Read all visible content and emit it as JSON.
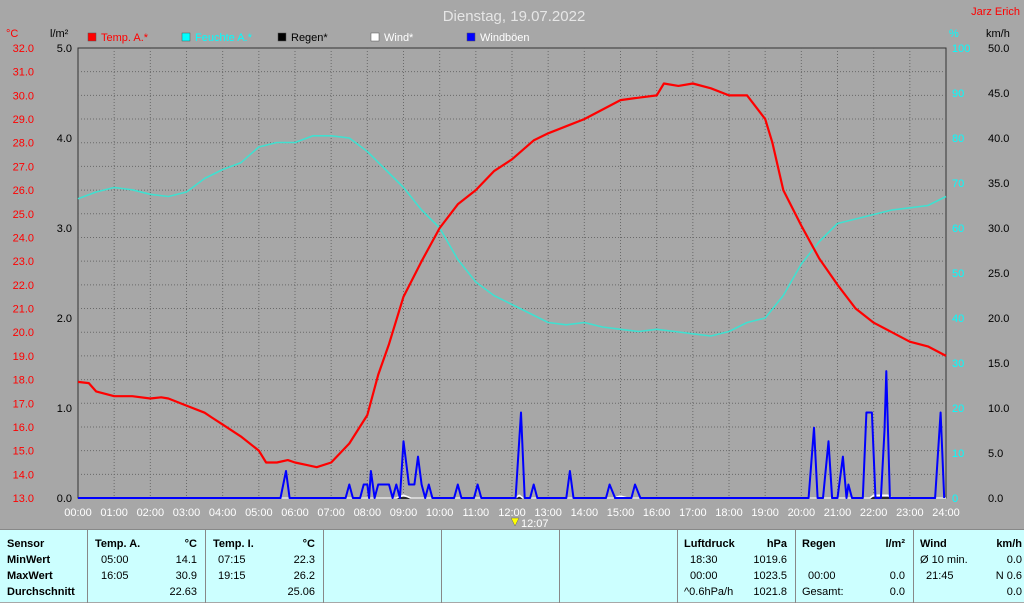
{
  "title": "Dienstag, 19.07.2022",
  "author": "Jarz Erich",
  "cursor_time": "12:07",
  "legend": [
    {
      "label": "Temp. A.*",
      "color": "#ff0000",
      "text_color": "#ff0000"
    },
    {
      "label": "Feuchte A.*",
      "color": "#00ffff",
      "text_color": "#00ffff"
    },
    {
      "label": "Regen*",
      "color": "#000000",
      "text_color": "#000000"
    },
    {
      "label": "Wind*",
      "color": "#ffffff",
      "text_color": "#ffffff"
    },
    {
      "label": "Windböen",
      "color": "#0000ff",
      "text_color": "#ffffff"
    }
  ],
  "axes": {
    "left_temp": {
      "unit": "°C",
      "min": 13.0,
      "max": 32.0,
      "ticks": [
        "32.0",
        "31.0",
        "30.0",
        "29.0",
        "28.0",
        "27.0",
        "26.0",
        "25.0",
        "24.0",
        "23.0",
        "22.0",
        "21.0",
        "20.0",
        "19.0",
        "18.0",
        "17.0",
        "16.0",
        "15.0",
        "14.0",
        "13.0"
      ]
    },
    "left_rain": {
      "unit": "l/m²",
      "min": 0,
      "max": 5.0,
      "ticks": [
        "5.0",
        "4.0",
        "3.0",
        "2.0",
        "1.0",
        "0.0"
      ]
    },
    "right_humidity": {
      "unit": "%",
      "min": 0,
      "max": 100,
      "ticks": [
        "100",
        "90",
        "80",
        "70",
        "60",
        "50",
        "40",
        "30",
        "20",
        "10",
        "0"
      ]
    },
    "right_wind": {
      "unit": "km/h",
      "min": 0,
      "max": 50,
      "ticks": [
        "50.0",
        "45.0",
        "40.0",
        "35.0",
        "30.0",
        "25.0",
        "20.0",
        "15.0",
        "10.0",
        "5.0",
        "0.0"
      ]
    },
    "x_ticks": [
      "00:00",
      "01:00",
      "02:00",
      "03:00",
      "04:00",
      "05:00",
      "06:00",
      "07:00",
      "08:00",
      "09:00",
      "10:00",
      "11:00",
      "12:00",
      "13:00",
      "14:00",
      "15:00",
      "16:00",
      "17:00",
      "18:00",
      "19:00",
      "20:00",
      "21:00",
      "22:00",
      "23:00",
      "24:00"
    ]
  },
  "chart_data": {
    "type": "line",
    "xlabel": "",
    "xlim": [
      0,
      24
    ],
    "series": [
      {
        "name": "Temp. A.*",
        "axis": "°C",
        "color": "#ff0000",
        "points": [
          [
            0,
            17.9
          ],
          [
            0.3,
            17.85
          ],
          [
            0.5,
            17.5
          ],
          [
            1,
            17.3
          ],
          [
            1.5,
            17.3
          ],
          [
            2,
            17.2
          ],
          [
            2.3,
            17.25
          ],
          [
            2.5,
            17.2
          ],
          [
            3,
            16.9
          ],
          [
            3.5,
            16.6
          ],
          [
            3.7,
            16.4
          ],
          [
            4,
            16.1
          ],
          [
            4.5,
            15.6
          ],
          [
            5,
            15.0
          ],
          [
            5.2,
            14.5
          ],
          [
            5.5,
            14.5
          ],
          [
            5.8,
            14.6
          ],
          [
            6,
            14.5
          ],
          [
            6.3,
            14.4
          ],
          [
            6.6,
            14.3
          ],
          [
            7,
            14.5
          ],
          [
            7.5,
            15.3
          ],
          [
            8,
            16.5
          ],
          [
            8.3,
            18.2
          ],
          [
            8.6,
            19.5
          ],
          [
            9,
            21.5
          ],
          [
            9.5,
            23.0
          ],
          [
            10,
            24.4
          ],
          [
            10.5,
            25.4
          ],
          [
            11,
            26.0
          ],
          [
            11.5,
            26.8
          ],
          [
            12,
            27.3
          ],
          [
            12.3,
            27.7
          ],
          [
            12.6,
            28.1
          ],
          [
            13,
            28.4
          ],
          [
            13.5,
            28.7
          ],
          [
            14,
            29.0
          ],
          [
            14.5,
            29.4
          ],
          [
            15,
            29.8
          ],
          [
            15.5,
            29.9
          ],
          [
            16,
            30.0
          ],
          [
            16.2,
            30.5
          ],
          [
            16.6,
            30.4
          ],
          [
            17,
            30.5
          ],
          [
            17.5,
            30.3
          ],
          [
            18,
            30.0
          ],
          [
            18.5,
            30.0
          ],
          [
            19,
            29.0
          ],
          [
            19.2,
            28.0
          ],
          [
            19.5,
            26.0
          ],
          [
            20,
            24.5
          ],
          [
            20.5,
            23.1
          ],
          [
            21,
            22.0
          ],
          [
            21.5,
            21.0
          ],
          [
            22,
            20.4
          ],
          [
            22.5,
            20.0
          ],
          [
            23,
            19.6
          ],
          [
            23.5,
            19.4
          ],
          [
            24,
            19.0
          ]
        ]
      },
      {
        "name": "Feuchte A.*",
        "axis": "%",
        "color": "#40e0d0",
        "points": [
          [
            0,
            66.5
          ],
          [
            0.5,
            68
          ],
          [
            1,
            69
          ],
          [
            1.5,
            68.5
          ],
          [
            2,
            67.5
          ],
          [
            2.5,
            67
          ],
          [
            3,
            68
          ],
          [
            3.5,
            71
          ],
          [
            4,
            73
          ],
          [
            4.5,
            74.5
          ],
          [
            5,
            78
          ],
          [
            5.5,
            79
          ],
          [
            6,
            79
          ],
          [
            6.5,
            80.5
          ],
          [
            7,
            80.5
          ],
          [
            7.5,
            80
          ],
          [
            8,
            77
          ],
          [
            8.5,
            73
          ],
          [
            9,
            69
          ],
          [
            9.5,
            64
          ],
          [
            10,
            60
          ],
          [
            10.5,
            53
          ],
          [
            11,
            48
          ],
          [
            11.5,
            45
          ],
          [
            12,
            43
          ],
          [
            12.5,
            41
          ],
          [
            13,
            39
          ],
          [
            13.5,
            38.5
          ],
          [
            14,
            39
          ],
          [
            14.5,
            38
          ],
          [
            15,
            37.5
          ],
          [
            15.5,
            37
          ],
          [
            16,
            37.5
          ],
          [
            16.5,
            37
          ],
          [
            17,
            36.5
          ],
          [
            17.5,
            36
          ],
          [
            18,
            37
          ],
          [
            18.5,
            39
          ],
          [
            19,
            40
          ],
          [
            19.5,
            45
          ],
          [
            20,
            52
          ],
          [
            20.5,
            57
          ],
          [
            21,
            61
          ],
          [
            21.5,
            62
          ],
          [
            22,
            63
          ],
          [
            22.5,
            64
          ],
          [
            23,
            64.5
          ],
          [
            23.5,
            65
          ],
          [
            24,
            67
          ]
        ]
      },
      {
        "name": "Regen*",
        "axis": "l/m²",
        "color": "#000000",
        "points": [
          [
            0,
            0
          ],
          [
            24,
            0
          ]
        ]
      },
      {
        "name": "Wind*",
        "axis": "km/h",
        "color": "#ffffff",
        "points": [
          [
            0,
            0
          ],
          [
            8.8,
            0
          ],
          [
            9,
            0.3
          ],
          [
            9.2,
            0
          ],
          [
            12.1,
            0
          ],
          [
            12.2,
            0.3
          ],
          [
            12.3,
            0
          ],
          [
            14.8,
            0
          ],
          [
            15,
            0.2
          ],
          [
            15.2,
            0
          ],
          [
            21.9,
            0
          ],
          [
            22,
            0.3
          ],
          [
            22.4,
            0.3
          ],
          [
            22.5,
            0
          ],
          [
            24,
            0
          ]
        ]
      },
      {
        "name": "Windböen",
        "axis": "km/h",
        "color": "#0000ff",
        "points": [
          [
            0,
            0
          ],
          [
            5.6,
            0
          ],
          [
            5.75,
            3
          ],
          [
            5.85,
            0
          ],
          [
            7.4,
            0
          ],
          [
            7.5,
            1.5
          ],
          [
            7.6,
            0
          ],
          [
            7.8,
            0
          ],
          [
            7.9,
            1.5
          ],
          [
            8.0,
            1.5
          ],
          [
            8.05,
            0
          ],
          [
            8.1,
            3
          ],
          [
            8.2,
            0
          ],
          [
            8.3,
            1.5
          ],
          [
            8.6,
            1.5
          ],
          [
            8.7,
            0
          ],
          [
            8.8,
            1.5
          ],
          [
            8.9,
            0
          ],
          [
            9.0,
            6.3
          ],
          [
            9.15,
            1.5
          ],
          [
            9.3,
            1.5
          ],
          [
            9.4,
            4.6
          ],
          [
            9.5,
            1.5
          ],
          [
            9.6,
            0
          ],
          [
            9.7,
            1.5
          ],
          [
            9.8,
            0
          ],
          [
            10.4,
            0
          ],
          [
            10.5,
            1.5
          ],
          [
            10.6,
            0
          ],
          [
            10.95,
            0
          ],
          [
            11.05,
            1.5
          ],
          [
            11.15,
            0
          ],
          [
            12.1,
            0
          ],
          [
            12.25,
            9.5
          ],
          [
            12.35,
            0
          ],
          [
            12.5,
            0
          ],
          [
            12.6,
            1.5
          ],
          [
            12.7,
            0
          ],
          [
            13.5,
            0
          ],
          [
            13.6,
            3
          ],
          [
            13.7,
            0
          ],
          [
            14.6,
            0
          ],
          [
            14.7,
            1.5
          ],
          [
            14.85,
            0
          ],
          [
            15.3,
            0
          ],
          [
            15.4,
            1.5
          ],
          [
            15.55,
            0
          ],
          [
            20.2,
            0
          ],
          [
            20.35,
            7.8
          ],
          [
            20.45,
            0
          ],
          [
            20.6,
            0
          ],
          [
            20.75,
            6.3
          ],
          [
            20.85,
            0
          ],
          [
            21.0,
            0
          ],
          [
            21.15,
            4.6
          ],
          [
            21.25,
            0
          ],
          [
            21.3,
            1.5
          ],
          [
            21.4,
            0
          ],
          [
            21.7,
            0
          ],
          [
            21.8,
            9.5
          ],
          [
            21.95,
            9.5
          ],
          [
            22.05,
            0
          ],
          [
            22.2,
            0
          ],
          [
            22.3,
            7.5
          ],
          [
            22.35,
            14.1
          ],
          [
            22.45,
            0
          ],
          [
            23.7,
            0
          ],
          [
            23.85,
            9.5
          ],
          [
            23.95,
            0
          ]
        ]
      }
    ]
  },
  "stats": {
    "sensor": {
      "header": "Sensor",
      "rows": [
        "MinWert",
        "MaxWert",
        "Durchschnitt"
      ]
    },
    "temp_a": {
      "header": "Temp. A.",
      "unit": "°C",
      "rows": [
        {
          "time": "05:00",
          "value": "14.1"
        },
        {
          "time": "16:05",
          "value": "30.9"
        },
        {
          "time": "",
          "value": "22.63"
        }
      ]
    },
    "temp_i": {
      "header": "Temp. I.",
      "unit": "°C",
      "rows": [
        {
          "time": "07:15",
          "value": "22.3"
        },
        {
          "time": "19:15",
          "value": "26.2"
        },
        {
          "time": "",
          "value": "25.06"
        }
      ]
    },
    "pressure": {
      "header": "Luftdruck",
      "unit": "hPa",
      "rows": [
        {
          "time": "18:30",
          "value": "1019.6"
        },
        {
          "time": "00:00",
          "value": "1023.5"
        },
        {
          "time": "^0.6hPa/h",
          "value": "1021.8"
        }
      ]
    },
    "rain": {
      "header": "Regen",
      "unit": "l/m²",
      "rows": [
        {
          "time": "",
          "value": ""
        },
        {
          "time": "00:00",
          "value": "0.0"
        },
        {
          "time": "Gesamt:",
          "value": "0.0"
        }
      ]
    },
    "wind": {
      "header": "Wind",
      "unit": "km/h",
      "rows": [
        {
          "time": "Ø 10 min.",
          "value": "0.0"
        },
        {
          "time": "21:45",
          "value": "N 0.6"
        },
        {
          "time": "",
          "value": "0.0"
        }
      ]
    }
  }
}
